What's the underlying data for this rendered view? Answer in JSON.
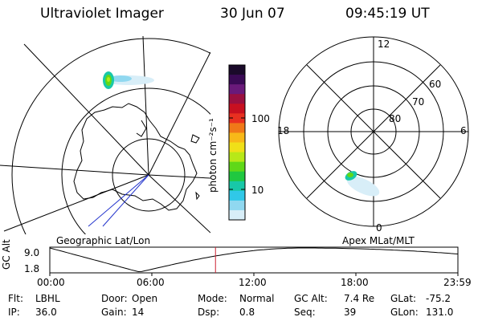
{
  "header": {
    "instrument": "Ultraviolet Imager",
    "date": "30 Jun 07",
    "time": "09:45:19 UT"
  },
  "left_panel": {
    "caption": "Geographic Lat/Lon"
  },
  "right_panel": {
    "caption": "Apex MLat/MLT",
    "mlt_labels": {
      "top": "12",
      "left": "18",
      "right": "6",
      "bottom": "0"
    },
    "lat_labels": [
      "60",
      "70",
      "80"
    ]
  },
  "colorbar": {
    "unit_label": "photon cm⁻²s⁻¹",
    "ticks": [
      "100",
      "10"
    ],
    "colors": [
      "#1a0a2a",
      "#3a0a55",
      "#6a1a7a",
      "#9a1040",
      "#c81020",
      "#e83020",
      "#f07818",
      "#f8b818",
      "#f0e018",
      "#b8e818",
      "#60d818",
      "#20c840",
      "#18c8a8",
      "#30c8e8",
      "#90d8f0",
      "#d8eef8"
    ]
  },
  "timeline": {
    "ylabel": "GC Alt",
    "ymax_label": "9.0",
    "ymin_label": "1.8",
    "ticks": [
      "00:00",
      "06:00",
      "12:00",
      "18:00",
      "23:59"
    ],
    "current_fraction": 0.406,
    "marker_color": "#cc2233"
  },
  "info": {
    "row1": [
      {
        "key": "Flt:",
        "value": "LBHL"
      },
      {
        "key": "Door:",
        "value": "Open"
      },
      {
        "key": "Mode:",
        "value": "Normal"
      },
      {
        "key": "GC Alt:",
        "value": "7.4 Re"
      },
      {
        "key": "GLat:",
        "value": "-75.2"
      }
    ],
    "row2": [
      {
        "key": "IP:",
        "value": "36.0"
      },
      {
        "key": "Gain:",
        "value": "14"
      },
      {
        "key": "Dsp:",
        "value": "0.8"
      },
      {
        "key": "Seq:",
        "value": "39"
      },
      {
        "key": "GLon:",
        "value": "131.0"
      }
    ]
  }
}
